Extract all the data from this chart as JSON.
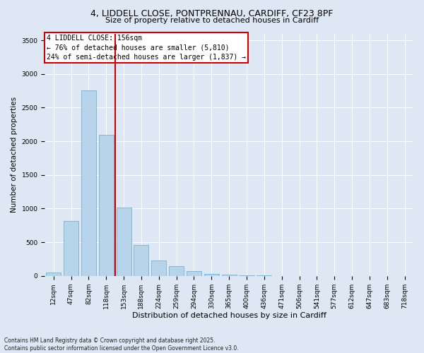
{
  "title_line1": "4, LIDDELL CLOSE, PONTPRENNAU, CARDIFF, CF23 8PF",
  "title_line2": "Size of property relative to detached houses in Cardiff",
  "xlabel": "Distribution of detached houses by size in Cardiff",
  "ylabel": "Number of detached properties",
  "categories": [
    "12sqm",
    "47sqm",
    "82sqm",
    "118sqm",
    "153sqm",
    "188sqm",
    "224sqm",
    "259sqm",
    "294sqm",
    "330sqm",
    "365sqm",
    "400sqm",
    "436sqm",
    "471sqm",
    "506sqm",
    "541sqm",
    "577sqm",
    "612sqm",
    "647sqm",
    "683sqm",
    "718sqm"
  ],
  "values": [
    55,
    820,
    2760,
    2100,
    1020,
    460,
    230,
    140,
    75,
    35,
    15,
    10,
    5,
    2,
    0,
    0,
    0,
    0,
    0,
    0,
    0
  ],
  "bar_color": "#b8d4ea",
  "bar_edge_color": "#7aaed0",
  "vline_color": "#cc0000",
  "vline_pos": 3.5,
  "annotation_title": "4 LIDDELL CLOSE: 156sqm",
  "annotation_line2": "← 76% of detached houses are smaller (5,810)",
  "annotation_line3": "24% of semi-detached houses are larger (1,837) →",
  "annotation_box_color": "#cc0000",
  "annotation_bg": "#ffffff",
  "ylim": [
    0,
    3600
  ],
  "yticks": [
    0,
    500,
    1000,
    1500,
    2000,
    2500,
    3000,
    3500
  ],
  "footnote_line1": "Contains HM Land Registry data © Crown copyright and database right 2025.",
  "footnote_line2": "Contains public sector information licensed under the Open Government Licence v3.0.",
  "bg_color": "#dde8f4",
  "plot_bg_color": "#dde8f4",
  "title_fontsize": 9,
  "subtitle_fontsize": 8,
  "ylabel_fontsize": 7.5,
  "xlabel_fontsize": 8,
  "tick_fontsize": 6.5,
  "annot_fontsize": 7,
  "footnote_fontsize": 5.5
}
